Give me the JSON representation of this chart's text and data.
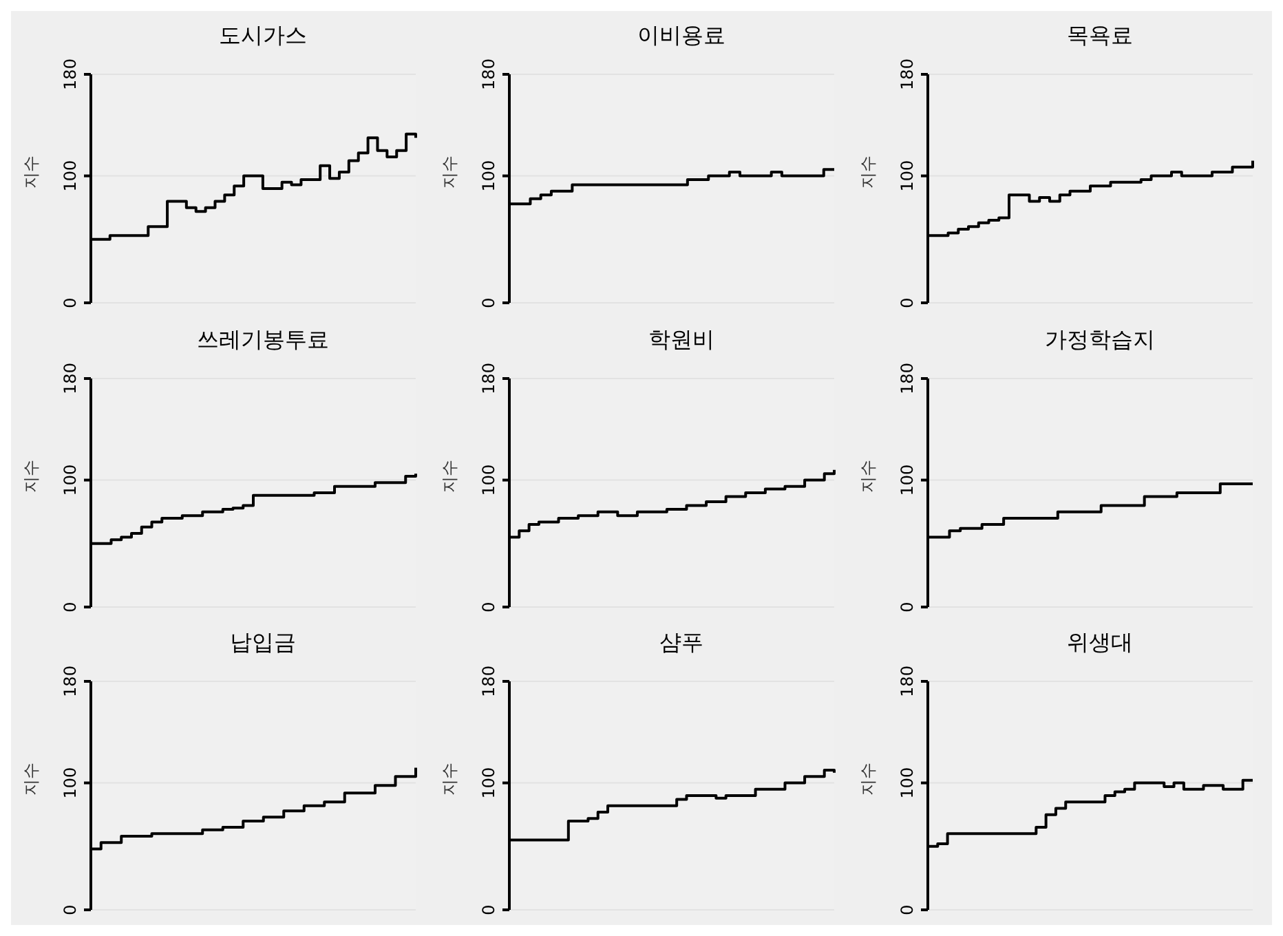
{
  "chart_data": [
    {
      "type": "step",
      "title": "도시가스",
      "ylabel": "지수",
      "ylim": [
        0,
        180
      ],
      "yticks": [
        0,
        100,
        180
      ],
      "grid": "y",
      "tick_labels": "y",
      "color": "#000000",
      "values": [
        50,
        50,
        53,
        53,
        53,
        53,
        60,
        60,
        80,
        80,
        75,
        72,
        75,
        80,
        85,
        92,
        100,
        100,
        90,
        90,
        95,
        93,
        97,
        97,
        108,
        98,
        103,
        112,
        118,
        130,
        120,
        115,
        120,
        133,
        130
      ]
    },
    {
      "type": "step",
      "title": "이비용료",
      "ylabel": "지수",
      "ylim": [
        0,
        180
      ],
      "yticks": [
        0,
        100,
        180
      ],
      "grid": "y",
      "tick_labels": "y",
      "color": "#000000",
      "values": [
        78,
        78,
        82,
        85,
        88,
        88,
        93,
        93,
        93,
        93,
        93,
        93,
        93,
        93,
        93,
        93,
        93,
        97,
        97,
        100,
        100,
        103,
        100,
        100,
        100,
        103,
        100,
        100,
        100,
        100,
        105,
        105
      ]
    },
    {
      "type": "step",
      "title": "목욕료",
      "ylabel": "지수",
      "ylim": [
        0,
        180
      ],
      "yticks": [
        0,
        100,
        180
      ],
      "grid": "y",
      "tick_labels": "y",
      "color": "#000000",
      "values": [
        53,
        53,
        55,
        58,
        60,
        63,
        65,
        67,
        85,
        85,
        80,
        83,
        80,
        85,
        88,
        88,
        92,
        92,
        95,
        95,
        95,
        97,
        100,
        100,
        103,
        100,
        100,
        100,
        103,
        103,
        107,
        107,
        112
      ]
    },
    {
      "type": "step",
      "title": "쓰레기봉투료",
      "ylabel": "지수",
      "ylim": [
        0,
        180
      ],
      "yticks": [
        0,
        100,
        180
      ],
      "grid": "y",
      "tick_labels": "y",
      "color": "#000000",
      "values": [
        50,
        50,
        53,
        55,
        58,
        63,
        67,
        70,
        70,
        72,
        72,
        75,
        75,
        77,
        78,
        80,
        88,
        88,
        88,
        88,
        88,
        88,
        90,
        90,
        95,
        95,
        95,
        95,
        98,
        98,
        98,
        103,
        105
      ]
    },
    {
      "type": "step",
      "title": "학원비",
      "ylabel": "지수",
      "ylim": [
        0,
        180
      ],
      "yticks": [
        0,
        100,
        180
      ],
      "grid": "y",
      "tick_labels": "y",
      "color": "#000000",
      "values": [
        55,
        60,
        65,
        67,
        67,
        70,
        70,
        72,
        72,
        75,
        75,
        72,
        72,
        75,
        75,
        75,
        77,
        77,
        80,
        80,
        83,
        83,
        87,
        87,
        90,
        90,
        93,
        93,
        95,
        95,
        100,
        100,
        105,
        108
      ]
    },
    {
      "type": "step",
      "title": "가정학습지",
      "ylabel": "지수",
      "ylim": [
        0,
        180
      ],
      "yticks": [
        0,
        100,
        180
      ],
      "grid": "y",
      "tick_labels": "y",
      "color": "#000000",
      "values": [
        55,
        55,
        60,
        62,
        62,
        65,
        65,
        70,
        70,
        70,
        70,
        70,
        75,
        75,
        75,
        75,
        80,
        80,
        80,
        80,
        87,
        87,
        87,
        90,
        90,
        90,
        90,
        97,
        97,
        97,
        97
      ]
    },
    {
      "type": "step",
      "title": "납입금",
      "ylabel": "지수",
      "ylim": [
        0,
        180
      ],
      "yticks": [
        0,
        100,
        180
      ],
      "grid": "y",
      "tick_labels": "y",
      "color": "#000000",
      "values": [
        48,
        53,
        53,
        58,
        58,
        58,
        60,
        60,
        60,
        60,
        60,
        63,
        63,
        65,
        65,
        70,
        70,
        73,
        73,
        78,
        78,
        82,
        82,
        85,
        85,
        92,
        92,
        92,
        98,
        98,
        105,
        105,
        112
      ]
    },
    {
      "type": "step",
      "title": "샴푸",
      "ylabel": "지수",
      "ylim": [
        0,
        180
      ],
      "yticks": [
        0,
        100,
        180
      ],
      "grid": "y",
      "tick_labels": "y",
      "color": "#000000",
      "values": [
        55,
        55,
        55,
        55,
        55,
        55,
        70,
        70,
        72,
        77,
        82,
        82,
        82,
        82,
        82,
        82,
        82,
        87,
        90,
        90,
        90,
        88,
        90,
        90,
        90,
        95,
        95,
        95,
        100,
        100,
        105,
        105,
        110,
        108
      ]
    },
    {
      "type": "step",
      "title": "위생대",
      "ylabel": "지수",
      "ylim": [
        0,
        180
      ],
      "yticks": [
        0,
        100,
        180
      ],
      "grid": "y",
      "tick_labels": "y",
      "color": "#000000",
      "values": [
        50,
        52,
        60,
        60,
        60,
        60,
        60,
        60,
        60,
        60,
        60,
        65,
        75,
        80,
        85,
        85,
        85,
        85,
        90,
        93,
        95,
        100,
        100,
        100,
        97,
        100,
        95,
        95,
        98,
        98,
        95,
        95,
        102,
        102
      ]
    }
  ]
}
